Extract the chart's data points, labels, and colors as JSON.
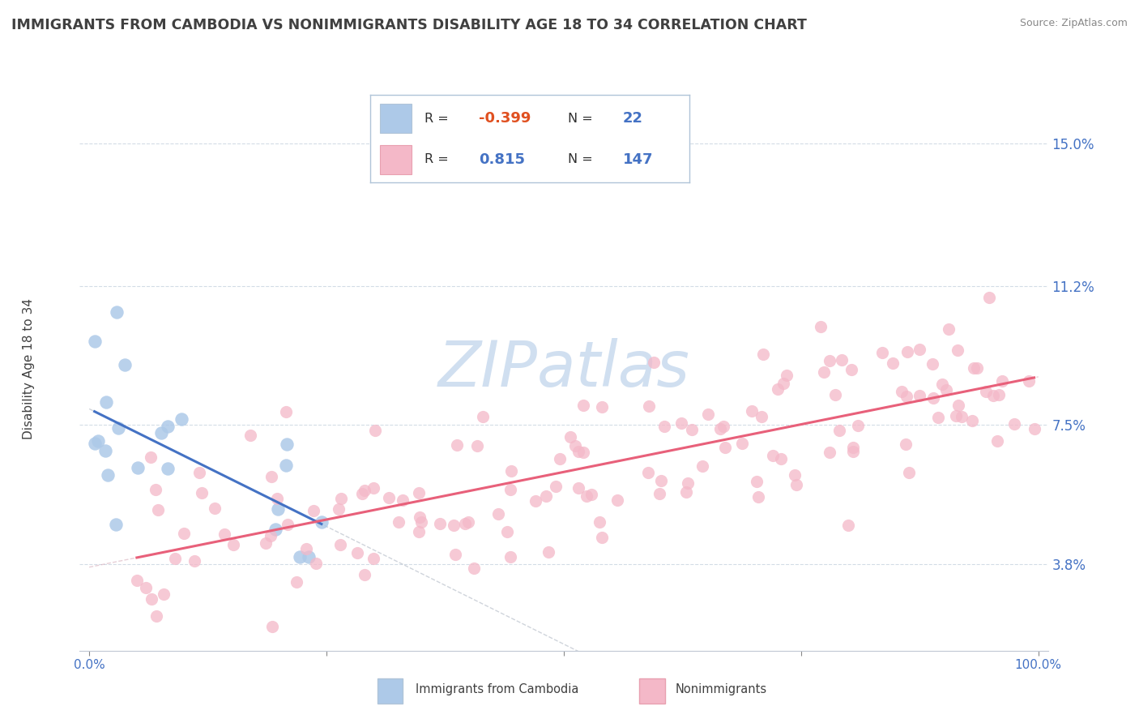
{
  "title": "IMMIGRANTS FROM CAMBODIA VS NONIMMIGRANTS DISABILITY AGE 18 TO 34 CORRELATION CHART",
  "source": "Source: ZipAtlas.com",
  "ylabel": "Disability Age 18 to 34",
  "yticks": [
    3.8,
    7.5,
    11.2,
    15.0
  ],
  "ytick_labels": [
    "3.8%",
    "7.5%",
    "11.2%",
    "15.0%"
  ],
  "xtick_labels": [
    "0.0%",
    "100.0%"
  ],
  "series1_color": "#adc9e8",
  "series1_edge": "#adc9e8",
  "series1_line_color": "#4472c4",
  "series1_label": "Immigrants from Cambodia",
  "series1_R": -0.399,
  "series1_N": 22,
  "series2_color": "#f4b8c8",
  "series2_edge": "#f4b8c8",
  "series2_line_color": "#e8607a",
  "series2_label": "Nonimmigrants",
  "series2_R": 0.815,
  "series2_N": 147,
  "watermark": "ZIPatlas",
  "watermark_color": "#d0dff0",
  "background_color": "#ffffff",
  "grid_color": "#c8d4e0",
  "title_color": "#404040",
  "axis_color": "#4472c4",
  "legend_R_neg_color": "#e05020",
  "legend_R_pos_color": "#4472c4",
  "legend_border_color": "#b0c4d8"
}
